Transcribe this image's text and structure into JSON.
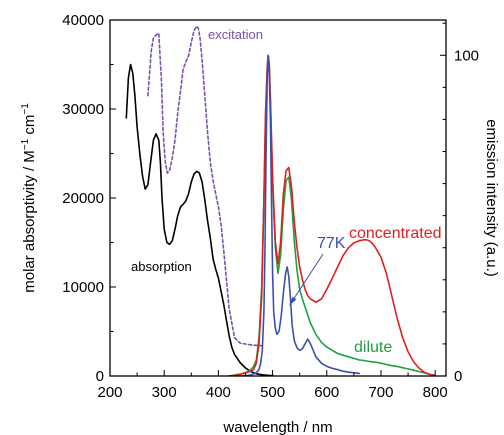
{
  "chart_data": {
    "type": "line",
    "xlabel": "wavelength / nm",
    "ylabel_left_main": "molar absorptivity / M",
    "ylabel_left_sup1": "−1",
    "ylabel_left_mid": " cm",
    "ylabel_left_sup2": "−1",
    "ylabel_right": "emission intensity (a.u.)",
    "xlim": [
      200,
      820
    ],
    "ylim_left": [
      0,
      40000
    ],
    "ylim_right": [
      0,
      111
    ],
    "x_ticks": [
      200,
      300,
      400,
      500,
      600,
      700,
      800
    ],
    "y_left_ticks": [
      0,
      10000,
      20000,
      30000,
      40000
    ],
    "y_right_ticks": [
      0,
      100
    ],
    "grid": false,
    "annotations": {
      "excitation": "excitation",
      "absorption": "absorption",
      "k77": "77K",
      "concentrated": "concentrated",
      "dilute": "dilute"
    },
    "colors": {
      "absorption": "#000000",
      "excitation": "#7a4fb0",
      "k77": "#3a4fb0",
      "concentrated": "#e02020",
      "dilute": "#20a040"
    },
    "series": [
      {
        "id": "absorption",
        "axis": "left",
        "dash": false,
        "x": [
          230,
          234,
          238,
          242,
          246,
          250,
          255,
          260,
          265,
          270,
          275,
          280,
          285,
          290,
          293,
          296,
          300,
          305,
          310,
          315,
          320,
          325,
          330,
          335,
          340,
          345,
          350,
          355,
          360,
          365,
          370,
          375,
          380,
          385,
          390,
          395,
          400,
          405,
          410,
          415,
          420,
          425,
          430,
          440,
          450,
          460,
          470,
          480,
          490,
          500
        ],
        "y": [
          29000,
          33500,
          35000,
          34000,
          31500,
          28000,
          25000,
          22500,
          21000,
          21500,
          24000,
          26500,
          27200,
          26500,
          24000,
          20000,
          16500,
          15000,
          14800,
          15200,
          16500,
          18000,
          19000,
          19300,
          19700,
          20500,
          21800,
          22700,
          23000,
          22800,
          21800,
          19800,
          17500,
          15500,
          13200,
          12000,
          11000,
          9500,
          8000,
          6200,
          4500,
          3200,
          2400,
          1500,
          900,
          500,
          250,
          150,
          80,
          50
        ]
      },
      {
        "id": "excitation",
        "axis": "left",
        "dash": true,
        "x": [
          270,
          273,
          276,
          280,
          285,
          290,
          295,
          298,
          302,
          306,
          310,
          315,
          320,
          325,
          330,
          335,
          340,
          345,
          350,
          355,
          360,
          363,
          366,
          370,
          375,
          380,
          385,
          390,
          395,
          400,
          405,
          410,
          420,
          430,
          440,
          450,
          460,
          470,
          480
        ],
        "y": [
          31500,
          34000,
          36500,
          38000,
          38300,
          38500,
          33000,
          27500,
          24000,
          22800,
          23100,
          24500,
          26500,
          29500,
          32000,
          34500,
          35300,
          36000,
          37500,
          38800,
          39300,
          39100,
          38000,
          35500,
          31500,
          27500,
          24000,
          22000,
          20500,
          19000,
          17000,
          14000,
          7500,
          4300,
          3700,
          3600,
          3500,
          3450,
          3400
        ]
      },
      {
        "id": "dilute",
        "axis": "right",
        "dash": false,
        "x": [
          420,
          430,
          440,
          450,
          460,
          465,
          470,
          475,
          480,
          484,
          487,
          490,
          492,
          494,
          496,
          500,
          505,
          510,
          515,
          520,
          525,
          530,
          535,
          540,
          545,
          550,
          555,
          560,
          565,
          570,
          580,
          590,
          600,
          610,
          620,
          630,
          640,
          650,
          660,
          670,
          680,
          690,
          700,
          710,
          720,
          730,
          740,
          750,
          760,
          770,
          780,
          790,
          800
        ],
        "y": [
          0,
          0.3,
          0.6,
          1,
          2,
          3,
          5,
          12,
          28,
          55,
          80,
          96,
          100,
          97,
          85,
          60,
          40,
          32,
          38,
          52,
          61,
          62,
          55,
          42,
          33,
          27,
          24,
          21.5,
          19,
          16.5,
          13,
          10.5,
          9,
          8,
          7,
          6.5,
          6,
          5.5,
          5,
          4.8,
          4.5,
          4.3,
          4,
          3.6,
          3.2,
          3,
          2.6,
          2.2,
          1.8,
          1.4,
          1,
          0.5,
          0.2
        ]
      },
      {
        "id": "concentrated",
        "axis": "right",
        "dash": false,
        "x": [
          420,
          430,
          440,
          450,
          460,
          465,
          470,
          475,
          480,
          484,
          487,
          490,
          492,
          494,
          496,
          500,
          505,
          510,
          515,
          520,
          525,
          530,
          535,
          540,
          545,
          550,
          555,
          560,
          565,
          570,
          575,
          580,
          590,
          600,
          610,
          620,
          630,
          640,
          650,
          660,
          670,
          675,
          680,
          685,
          690,
          700,
          710,
          720,
          730,
          740,
          750,
          760,
          770,
          780,
          790,
          800
        ],
        "y": [
          0,
          0.2,
          0.5,
          1,
          1.5,
          2,
          4,
          10,
          25,
          55,
          82,
          96,
          100,
          97,
          87,
          62,
          42,
          35,
          42,
          57,
          64,
          65,
          59,
          48,
          40,
          34,
          30,
          27,
          25,
          24,
          23.5,
          23,
          24,
          27,
          30.5,
          34,
          37.5,
          40,
          41.5,
          42.2,
          42.5,
          42.4,
          42,
          41.2,
          40,
          37,
          32,
          25,
          18,
          12,
          7.5,
          4.5,
          2.5,
          1.2,
          0.5,
          0.2
        ]
      },
      {
        "id": "k77",
        "axis": "right",
        "dash": false,
        "x": [
          420,
          440,
          460,
          470,
          475,
          478,
          481,
          484,
          486,
          488,
          490,
          491,
          492,
          494,
          496,
          498,
          500,
          502,
          505,
          508,
          512,
          516,
          520,
          524,
          527,
          530,
          533,
          536,
          540,
          545,
          550,
          555,
          560,
          565,
          570,
          575,
          580,
          590,
          600,
          610,
          620,
          630,
          640,
          650,
          660
        ],
        "y": [
          0,
          0,
          0.3,
          1,
          2,
          4,
          8,
          20,
          40,
          70,
          92,
          98,
          100,
          94,
          80,
          55,
          32,
          20,
          15,
          13,
          14,
          19,
          26,
          32,
          34,
          31,
          24,
          16,
          11,
          8.8,
          8,
          8.5,
          10,
          11.5,
          10,
          8,
          6,
          4,
          3,
          2.4,
          2,
          1.5,
          1.2,
          1,
          0.8
        ]
      }
    ]
  }
}
